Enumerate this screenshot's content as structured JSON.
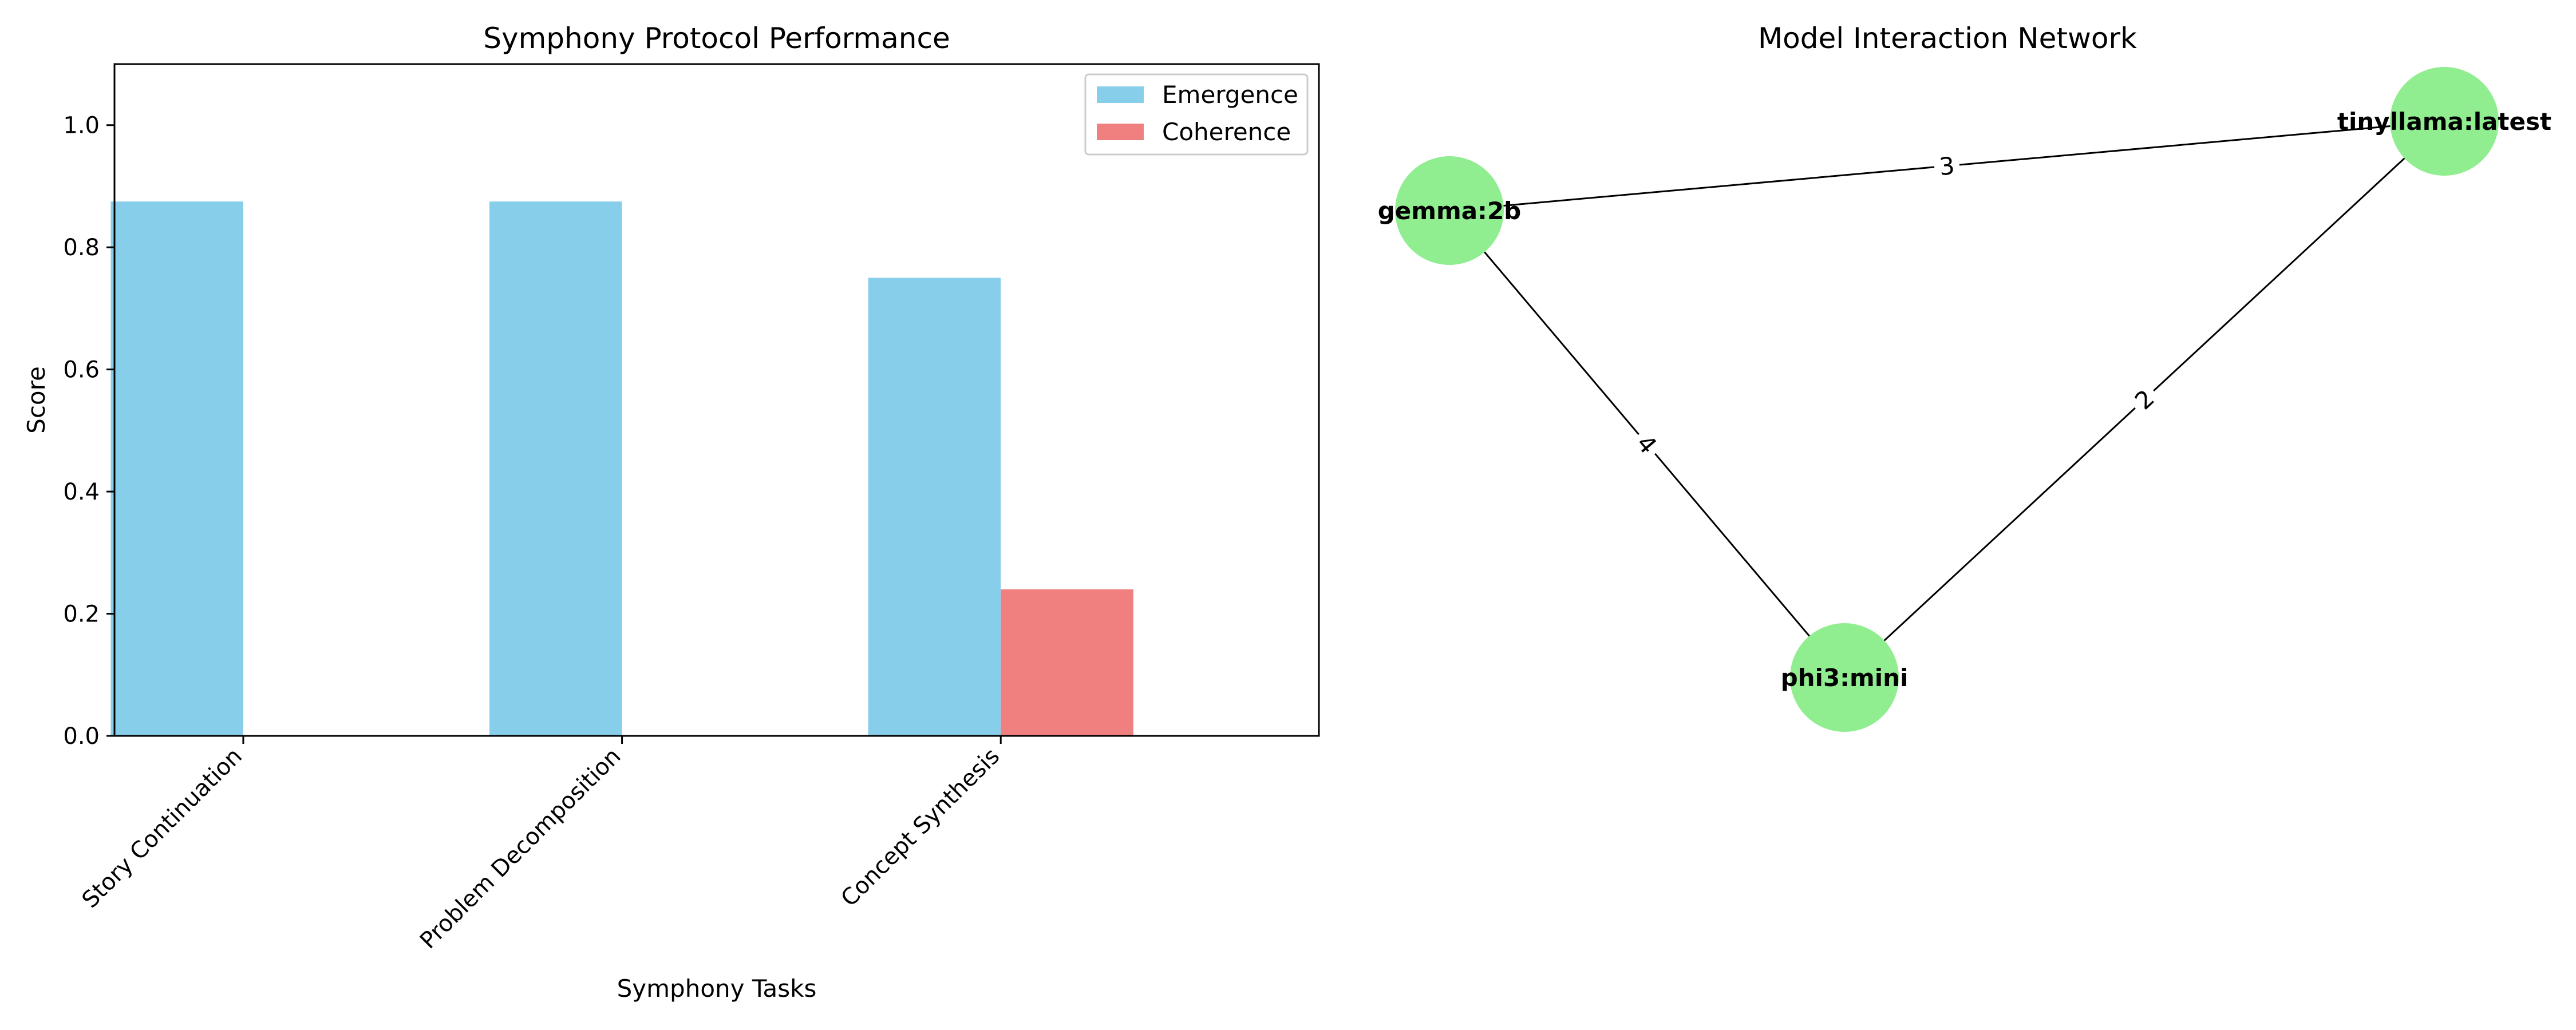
{
  "chart_data": [
    {
      "type": "bar",
      "title": "Symphony Protocol Performance",
      "xlabel": "Symphony Tasks",
      "ylabel": "Score",
      "categories": [
        "Story Continuation",
        "Problem Decomposition",
        "Concept Synthesis"
      ],
      "series": [
        {
          "name": "Emergence",
          "color": "#87CEEB",
          "values": [
            0.875,
            0.875,
            0.75
          ]
        },
        {
          "name": "Coherence",
          "color": "#F08080",
          "values": [
            0.0,
            0.0,
            0.24
          ]
        }
      ],
      "ylim": [
        0,
        1.1
      ],
      "yticks": [
        "0.0",
        "0.2",
        "0.4",
        "0.6",
        "0.8",
        "1.0"
      ],
      "legend": "top-right",
      "grid": false
    },
    {
      "type": "network",
      "title": "Model Interaction Network",
      "node_color": "#90EE90",
      "nodes": [
        {
          "id": "gemma:2b",
          "label": "gemma:2b"
        },
        {
          "id": "tinyllama:latest",
          "label": "tinyllama:latest"
        },
        {
          "id": "phi3:mini",
          "label": "phi3:mini"
        }
      ],
      "edges": [
        {
          "source": "gemma:2b",
          "target": "tinyllama:latest",
          "label": "3"
        },
        {
          "source": "gemma:2b",
          "target": "phi3:mini",
          "label": "4"
        },
        {
          "source": "phi3:mini",
          "target": "tinyllama:latest",
          "label": "2"
        }
      ]
    }
  ]
}
